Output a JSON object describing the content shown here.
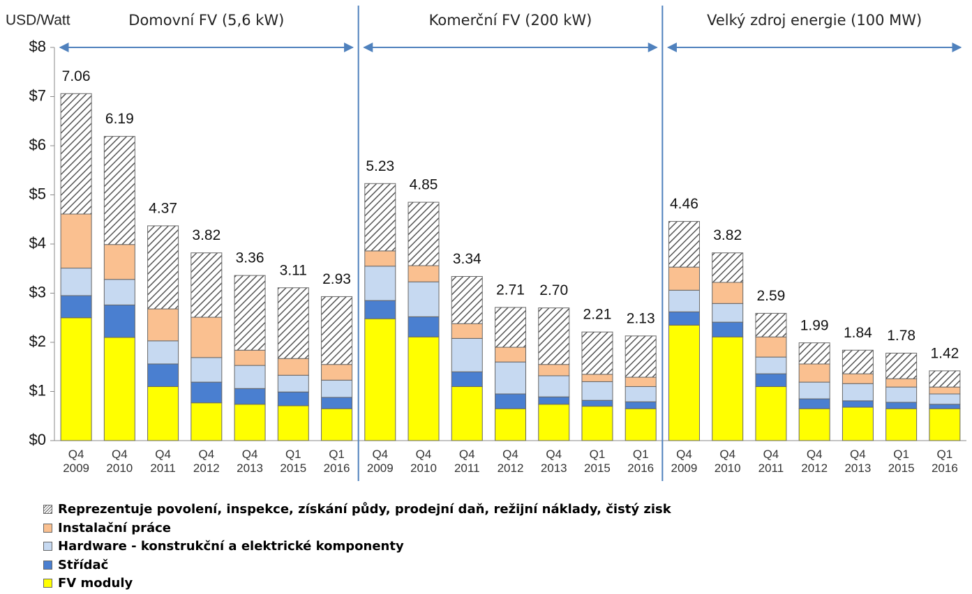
{
  "chart_data": {
    "type": "bar",
    "stacked": true,
    "y_axis_title": "USD/Watt",
    "groups": [
      "Domovní FV (5,6 kW)",
      "Komerční FV (200 kW)",
      "Velký zdroj energie (100 MW)"
    ],
    "categories": [
      "Q4 2009",
      "Q4 2010",
      "Q4 2011",
      "Q4 2012",
      "Q4 2013",
      "Q1 2015",
      "Q1 2016",
      "Q4 2009",
      "Q4 2010",
      "Q4 2011",
      "Q4 2012",
      "Q4 2013",
      "Q1 2015",
      "Q1 2016",
      "Q4 2009",
      "Q4 2010",
      "Q4 2011",
      "Q4 2012",
      "Q4 2013",
      "Q1 2015",
      "Q1 2016"
    ],
    "series": [
      {
        "name": "FV moduly",
        "color": "#ffff00",
        "values": [
          2.5,
          2.1,
          1.1,
          0.77,
          0.74,
          0.71,
          0.65,
          2.48,
          2.11,
          1.1,
          0.65,
          0.74,
          0.7,
          0.65,
          2.35,
          2.11,
          1.1,
          0.65,
          0.68,
          0.65,
          0.65
        ]
      },
      {
        "name": "Střídač",
        "color": "#4a7fd0",
        "values": [
          0.45,
          0.66,
          0.46,
          0.42,
          0.32,
          0.28,
          0.23,
          0.37,
          0.41,
          0.3,
          0.3,
          0.15,
          0.12,
          0.14,
          0.27,
          0.3,
          0.26,
          0.2,
          0.13,
          0.13,
          0.09
        ]
      },
      {
        "name": "Hardware - konstrukční a elektrické komponenty",
        "color": "#c6d9f1",
        "values": [
          0.56,
          0.52,
          0.47,
          0.5,
          0.47,
          0.34,
          0.35,
          0.7,
          0.71,
          0.68,
          0.65,
          0.43,
          0.38,
          0.31,
          0.44,
          0.38,
          0.34,
          0.34,
          0.35,
          0.31,
          0.21
        ]
      },
      {
        "name": "Instalační práce",
        "color": "#fac090",
        "values": [
          1.1,
          0.71,
          0.65,
          0.82,
          0.31,
          0.34,
          0.32,
          0.31,
          0.33,
          0.3,
          0.3,
          0.23,
          0.15,
          0.19,
          0.47,
          0.43,
          0.41,
          0.37,
          0.2,
          0.17,
          0.14
        ]
      },
      {
        "name": "Reprezentuje povolení, inspekce, získání půdy, prodejní daň, režijní náklady, čistý zisk",
        "color": "#555555",
        "hatch": true,
        "values": [
          2.45,
          2.2,
          1.69,
          1.31,
          1.52,
          1.44,
          1.38,
          1.37,
          1.29,
          0.96,
          0.81,
          1.15,
          0.86,
          0.84,
          0.93,
          0.6,
          0.48,
          0.43,
          0.48,
          0.52,
          0.33
        ]
      }
    ],
    "totals": {
      "values": [
        7.06,
        6.19,
        4.37,
        3.82,
        3.36,
        3.11,
        2.93,
        5.23,
        4.85,
        3.34,
        2.71,
        2.7,
        2.21,
        2.13,
        4.46,
        3.82,
        2.59,
        1.99,
        1.84,
        1.78,
        1.42
      ],
      "value_labels": [
        "7.06",
        "6.19",
        "4.37",
        "3.82",
        "3.36",
        "3.11",
        "2.93",
        "5.23",
        "4.85",
        "3.34",
        "2.71",
        "2.70",
        "2.21",
        "2.13",
        "4.46",
        "3.82",
        "2.59",
        "1.99",
        "1.84",
        "1.78",
        "1.42"
      ]
    },
    "ylim": [
      0,
      8
    ],
    "yticks": [
      {
        "value": 0,
        "label": "$0"
      },
      {
        "value": 1,
        "label": "$1"
      },
      {
        "value": 2,
        "label": "$2"
      },
      {
        "value": 3,
        "label": "$3"
      },
      {
        "value": 4,
        "label": "$4"
      },
      {
        "value": 5,
        "label": "$5"
      },
      {
        "value": 6,
        "label": "$6"
      },
      {
        "value": 7,
        "label": "$7"
      },
      {
        "value": 8,
        "label": "$8"
      }
    ],
    "legend": "bottom-left"
  }
}
